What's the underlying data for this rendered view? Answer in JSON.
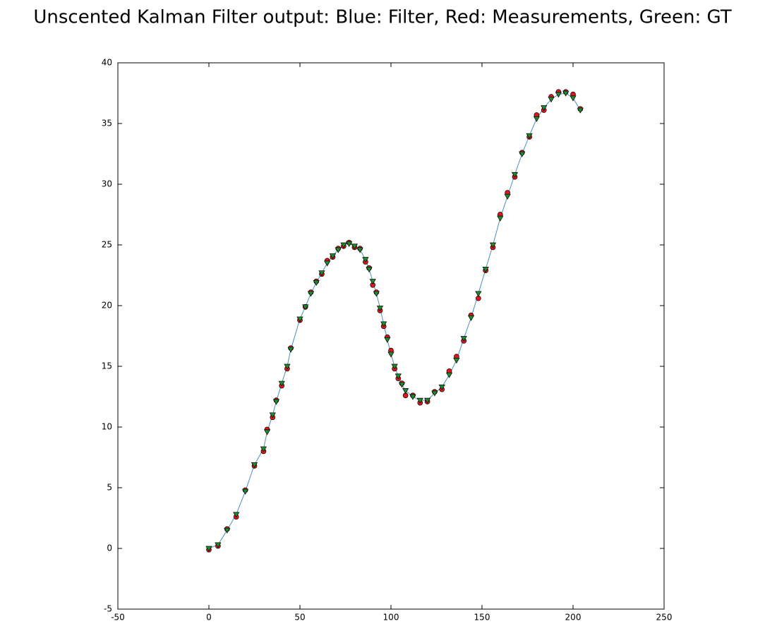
{
  "chart_data": {
    "type": "line",
    "title": "Unscented Kalman Filter output: Blue: Filter, Red: Measurements, Green: GT",
    "x": [
      0,
      5,
      10,
      15,
      20,
      25,
      30,
      32,
      35,
      37,
      40,
      43,
      45,
      50,
      53,
      56,
      59,
      62,
      65,
      68,
      71,
      74,
      77,
      80,
      83,
      86,
      88,
      90,
      92,
      94,
      96,
      98,
      100,
      102,
      104,
      106,
      108,
      112,
      116,
      120,
      124,
      128,
      132,
      136,
      140,
      144,
      148,
      152,
      156,
      160,
      164,
      168,
      172,
      176,
      180,
      184,
      188,
      192,
      196,
      200,
      204
    ],
    "series": [
      {
        "color": "#4a90c0",
        "marker": "line",
        "values": [
          0,
          0.3,
          1.5,
          2.8,
          4.7,
          6.9,
          8.2,
          9.6,
          11,
          12.1,
          13.6,
          15,
          16.4,
          18.9,
          19.9,
          21,
          21.9,
          22.7,
          23.5,
          24.1,
          24.6,
          25,
          25.1,
          24.9,
          24.6,
          23.8,
          23,
          22,
          21,
          19.8,
          18.5,
          17.2,
          16,
          15,
          14.2,
          13.5,
          13,
          12.5,
          12.2,
          12.2,
          12.8,
          13.3,
          14.3,
          15.5,
          17.3,
          19,
          21,
          23,
          25,
          27.2,
          29,
          30.8,
          32.5,
          34,
          35.4,
          36.3,
          37,
          37.4,
          37.5,
          37.1,
          36.1
        ]
      },
      {
        "color": "#e0161e",
        "marker": "o",
        "values": [
          -0.1,
          0.2,
          1.6,
          2.6,
          4.8,
          6.8,
          8.0,
          9.8,
          10.8,
          12.2,
          13.4,
          14.8,
          16.5,
          18.8,
          19.9,
          21.1,
          22.0,
          22.6,
          23.7,
          24.0,
          24.7,
          24.9,
          25.2,
          24.8,
          24.7,
          23.6,
          23.1,
          21.7,
          21.1,
          19.6,
          18.3,
          17.4,
          16.3,
          14.8,
          14.0,
          13.6,
          12.6,
          12.6,
          12.0,
          12.1,
          12.9,
          13.1,
          14.6,
          15.8,
          17.1,
          19.2,
          20.6,
          22.9,
          24.8,
          27.5,
          29.3,
          30.6,
          32.6,
          33.9,
          35.7,
          36.1,
          37.2,
          37.6,
          37.6,
          37.4,
          36.2
        ]
      },
      {
        "color": "#1f8a2e",
        "marker": "v",
        "values": [
          0,
          0.3,
          1.5,
          2.8,
          4.7,
          6.9,
          8.2,
          9.6,
          11,
          12.1,
          13.6,
          15,
          16.4,
          18.9,
          19.9,
          21,
          21.9,
          22.7,
          23.5,
          24.1,
          24.6,
          25,
          25.1,
          24.9,
          24.6,
          23.8,
          23,
          22,
          21,
          19.8,
          18.5,
          17.2,
          16,
          15,
          14.2,
          13.5,
          13,
          12.5,
          12.2,
          12.2,
          12.8,
          13.3,
          14.3,
          15.5,
          17.3,
          19,
          21,
          23,
          25,
          27.2,
          29,
          30.8,
          32.5,
          34,
          35.4,
          36.3,
          37,
          37.4,
          37.5,
          37.1,
          36.1
        ]
      }
    ],
    "xlim": [
      -50,
      250
    ],
    "ylim": [
      -5,
      40
    ],
    "xticks": [
      -50,
      0,
      50,
      100,
      150,
      200,
      250
    ],
    "yticks": [
      -5,
      0,
      5,
      10,
      15,
      20,
      25,
      30,
      35,
      40
    ]
  }
}
